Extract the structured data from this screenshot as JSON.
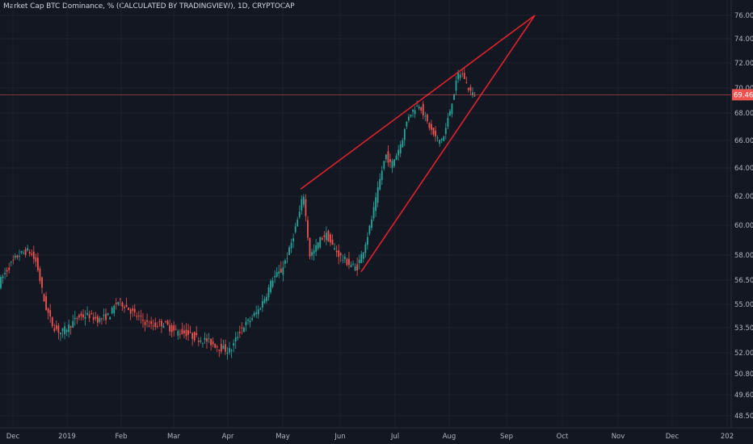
{
  "chart_title": "Market Cap BTC Dominance, % (CALCULATED BY TRADINGVIEW), 1D, CRYPTOCAP",
  "colors": {
    "background": "#131722",
    "grid": "#1e222d",
    "up_candle": "#26a69a",
    "down_candle": "#ef5350",
    "trendline": "#e0222b",
    "price_line": "#ef5350",
    "axis_text": "#b2b5be"
  },
  "chart_data": {
    "type": "candlestick",
    "title": "Market Cap BTC Dominance, % (CALCULATED BY TRADINGVIEW), 1D, CRYPTOCAP",
    "y_ticks": [
      "76.00",
      "74.00",
      "72.00",
      "70.00",
      "68.00",
      "66.00",
      "64.00",
      "62.00",
      "60.00",
      "58.00",
      "56.50",
      "55.00",
      "53.50",
      "52.00",
      "50.80",
      "49.60",
      "48.50"
    ],
    "x_ticks": [
      "Dec",
      "2019",
      "Feb",
      "Mar",
      "Apr",
      "May",
      "Jun",
      "Jul",
      "Aug",
      "Sep",
      "Oct",
      "Nov",
      "Dec",
      "202"
    ],
    "last_price": "69.46",
    "approx_close_series": [
      {
        "date": "Dec",
        "close": 56.5
      },
      {
        "date": "mid-Dec",
        "close": 58.2
      },
      {
        "date": "late-Dec",
        "close": 53.5
      },
      {
        "date": "2019",
        "close": 54.5
      },
      {
        "date": "mid-Jan",
        "close": 54.8
      },
      {
        "date": "Feb",
        "close": 55.2
      },
      {
        "date": "mid-Feb",
        "close": 54.2
      },
      {
        "date": "Mar",
        "close": 53.4
      },
      {
        "date": "mid-Mar",
        "close": 53.0
      },
      {
        "date": "Apr",
        "close": 52.2
      },
      {
        "date": "mid-Apr",
        "close": 54.5
      },
      {
        "date": "May",
        "close": 57.0
      },
      {
        "date": "mid-May",
        "close": 62.0
      },
      {
        "date": "late-May",
        "close": 59.0
      },
      {
        "date": "Jun",
        "close": 58.0
      },
      {
        "date": "mid-Jun",
        "close": 57.5
      },
      {
        "date": "late-Jun",
        "close": 62.0
      },
      {
        "date": "Jul",
        "close": 64.0
      },
      {
        "date": "mid-Jul",
        "close": 68.5
      },
      {
        "date": "late-Jul",
        "close": 66.0
      },
      {
        "date": "Aug",
        "close": 68.0
      },
      {
        "date": "early-Aug",
        "close": 71.3
      },
      {
        "date": "mid-Aug",
        "close": 69.46
      }
    ],
    "trendlines": [
      {
        "name": "upper",
        "from": {
          "date": "May",
          "value": 62.5
        },
        "to": {
          "date": "Sep",
          "value": 76.0
        }
      },
      {
        "name": "lower",
        "from": {
          "date": "mid-Jun",
          "value": 57.0
        },
        "to": {
          "date": "Sep",
          "value": 76.0
        }
      }
    ],
    "grid": true
  }
}
